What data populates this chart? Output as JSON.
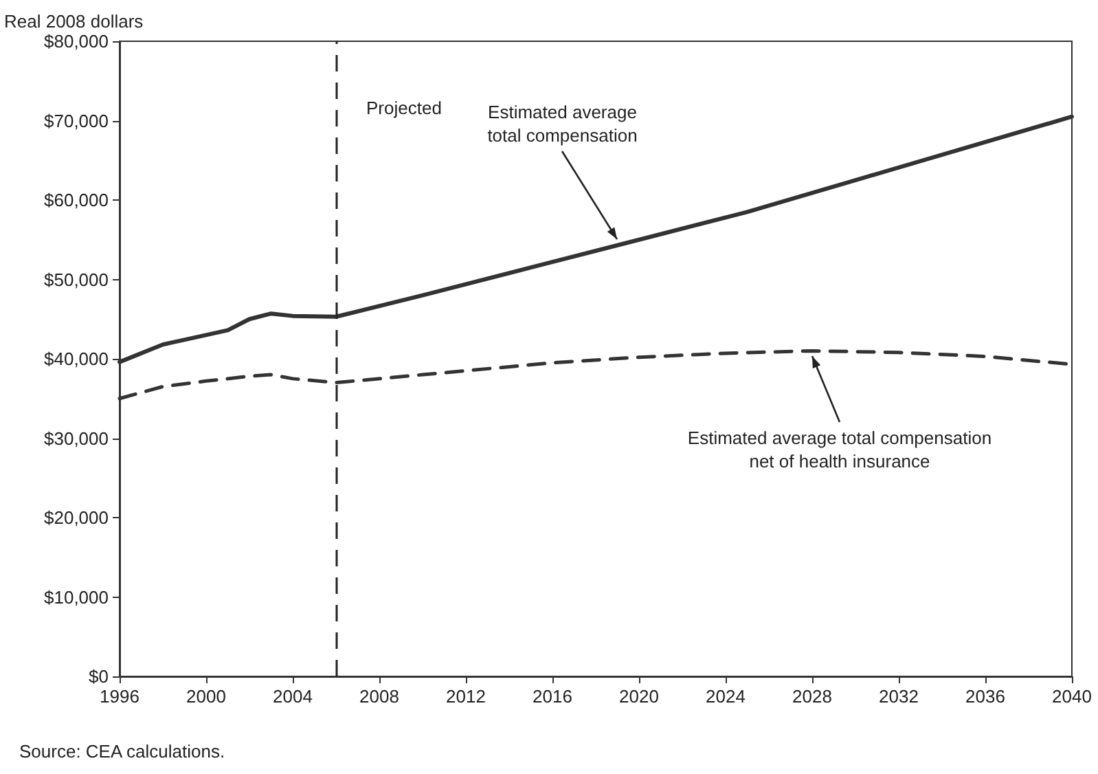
{
  "chart_data": {
    "type": "line",
    "ylabel": "Real 2008 dollars",
    "x": [
      1996,
      1998,
      2000,
      2001,
      2002,
      2003,
      2004,
      2006,
      2010,
      2015,
      2020,
      2025,
      2030,
      2035,
      2040
    ],
    "series": [
      {
        "color": "#333333",
        "line_style": "solid",
        "values": [
          39600,
          41800,
          43000,
          43600,
          45000,
          45700,
          45400,
          45300,
          48000,
          51500,
          55000,
          58500,
          62500,
          66500,
          70500
        ]
      },
      {
        "color": "#333333",
        "line_style": "dashed",
        "x": [
          1996,
          1998,
          2000,
          2002,
          2003,
          2004,
          2006,
          2010,
          2016,
          2020,
          2024,
          2028,
          2032,
          2036,
          2040
        ],
        "values": [
          35000,
          36500,
          37200,
          37800,
          38000,
          37500,
          37000,
          38000,
          39500,
          40200,
          40700,
          41000,
          40800,
          40300,
          39300
        ]
      }
    ],
    "xlim": [
      1996,
      2040
    ],
    "xticks": [
      1996,
      2000,
      2004,
      2008,
      2012,
      2016,
      2020,
      2024,
      2028,
      2032,
      2036,
      2040
    ],
    "ylim": [
      0,
      80000
    ],
    "yticks": [
      {
        "value": 0,
        "label": "$0"
      },
      {
        "value": 10000,
        "label": "$10,000"
      },
      {
        "value": 20000,
        "label": "$20,000"
      },
      {
        "value": 30000,
        "label": "$30,000"
      },
      {
        "value": 40000,
        "label": "$40,000"
      },
      {
        "value": 50000,
        "label": "$50,000"
      },
      {
        "value": 60000,
        "label": "$60,000"
      },
      {
        "value": 70000,
        "label": "$70,000"
      },
      {
        "value": 80000,
        "label": "$80,000"
      }
    ],
    "ref_lines": [
      {
        "axis": "x",
        "value": 2006,
        "label": "Projected",
        "line_style": "dashed"
      }
    ],
    "annotations": [
      {
        "text": "Estimated average total compensation",
        "x": 2019,
        "y": 54300
      },
      {
        "text": "Estimated average total compensation net of health insurance",
        "x": 2028,
        "y": 41000
      },
      "Source: CEA calculations."
    ],
    "grid": false,
    "marker": "none"
  }
}
